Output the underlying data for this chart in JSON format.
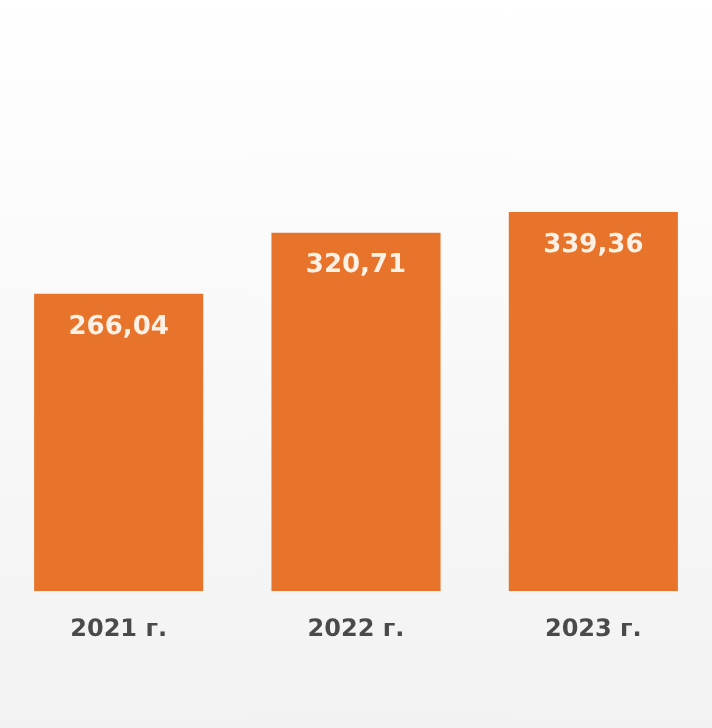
{
  "chart_data": {
    "type": "bar",
    "categories": [
      "2021 г.",
      "2022 г.",
      "2023 г."
    ],
    "values": [
      266.04,
      320.71,
      339.36
    ],
    "value_labels": [
      "266,04",
      "320,71",
      "339,36"
    ],
    "color": "#e8732a",
    "tick_labels": "x",
    "grid": false,
    "legend": false
  }
}
